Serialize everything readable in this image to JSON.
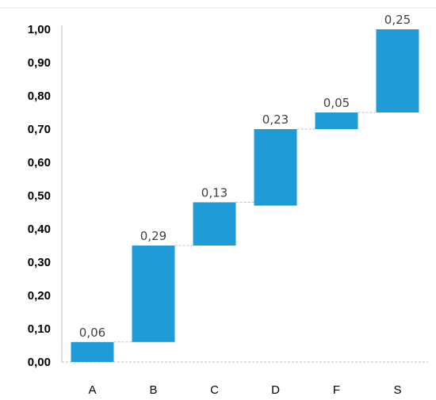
{
  "chart_data": {
    "type": "bar",
    "subtype": "waterfall",
    "title": "",
    "xlabel": "",
    "ylabel": "",
    "categories": [
      "A",
      "B",
      "C",
      "D",
      "F",
      "S"
    ],
    "bars": [
      {
        "category": "A",
        "start": 0.0,
        "end": 0.06,
        "label": "0,06"
      },
      {
        "category": "B",
        "start": 0.06,
        "end": 0.35,
        "label": "0,29"
      },
      {
        "category": "C",
        "start": 0.35,
        "end": 0.48,
        "label": "0,13"
      },
      {
        "category": "D",
        "start": 0.47,
        "end": 0.7,
        "label": "0,23"
      },
      {
        "category": "F",
        "start": 0.7,
        "end": 0.75,
        "label": "0,05"
      },
      {
        "category": "S",
        "start": 0.75,
        "end": 1.0,
        "label": "0,25"
      }
    ],
    "ylim": [
      0,
      1
    ],
    "yticks": [
      {
        "value": 0.0,
        "label": "0,00"
      },
      {
        "value": 0.1,
        "label": "0,10"
      },
      {
        "value": 0.2,
        "label": "0,20"
      },
      {
        "value": 0.3,
        "label": "0,30"
      },
      {
        "value": 0.4,
        "label": "0,40"
      },
      {
        "value": 0.5,
        "label": "0,50"
      },
      {
        "value": 0.6,
        "label": "0,60"
      },
      {
        "value": 0.7,
        "label": "0,70"
      },
      {
        "value": 0.8,
        "label": "0,80"
      },
      {
        "value": 0.9,
        "label": "0,90"
      },
      {
        "value": 1.0,
        "label": "1,00"
      }
    ],
    "grid": false,
    "connectors": true,
    "legend": "none",
    "colors": {
      "bar": "#1f9bd7",
      "axis": "#bfbfbf",
      "connector": "#bfbfbf",
      "label": "#404040"
    }
  }
}
